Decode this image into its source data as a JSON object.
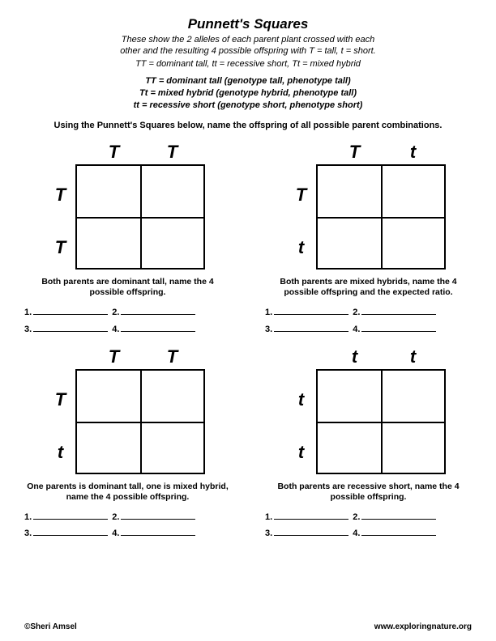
{
  "title": "Punnett's Squares",
  "subtitle_line1": "These show the 2 alleles of each parent plant crossed with each",
  "subtitle_line2": "other and the resulting 4 possible offspring with T = tall, t = short.",
  "notation": "TT = dominant tall, tt = recessive short, Tt = mixed hybrid",
  "def1": "TT = dominant tall (genotype tall, phenotype tall)",
  "def2": "Tt = mixed hybrid (genotype hybrid, phenotype tall)",
  "def3": "tt = recessive short (genotype short, phenotype short)",
  "instruction": "Using the Punnett's Squares below, name the offspring of all possible parent combinations.",
  "squares": [
    {
      "col1": "T",
      "col2": "T",
      "row1": "T",
      "row2": "T",
      "caption": "Both parents are dominant tall, name the 4 possible offspring."
    },
    {
      "col1": "T",
      "col2": "t",
      "row1": "T",
      "row2": "t",
      "caption": "Both parents are mixed hybrids, name the 4 possible offspring and the expected ratio."
    },
    {
      "col1": "T",
      "col2": "T",
      "row1": "T",
      "row2": "t",
      "caption": "One parents is dominant tall, one is mixed hybrid, name the 4 possible offspring."
    },
    {
      "col1": "t",
      "col2": "t",
      "row1": "t",
      "row2": "t",
      "caption": "Both parents are recessive short, name the 4 possible offspring."
    }
  ],
  "answer_labels": {
    "n1": "1.",
    "n2": "2.",
    "n3": "3.",
    "n4": "4."
  },
  "footer": {
    "left": "©Sheri Amsel",
    "right": "www.exploringnature.org"
  },
  "colors": {
    "text": "#000000",
    "background": "#ffffff",
    "border": "#000000"
  }
}
